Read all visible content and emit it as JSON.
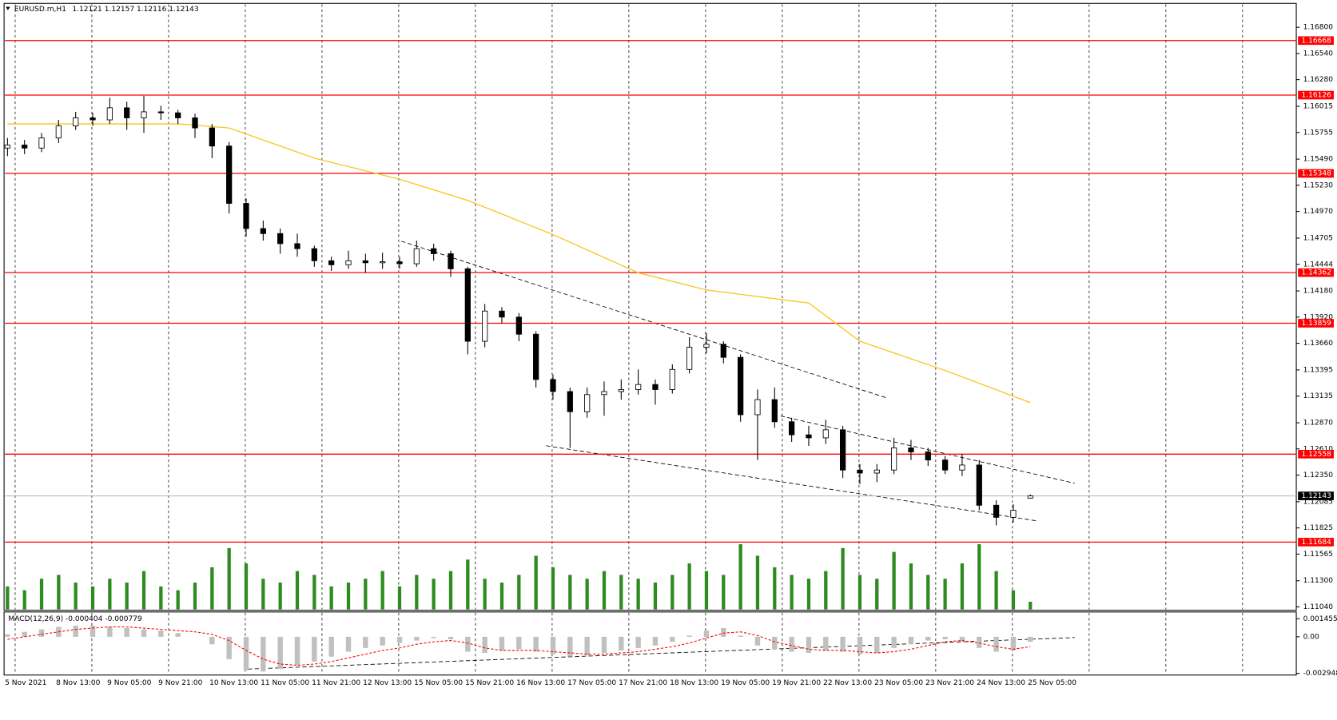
{
  "chart_data": {
    "type": "candlestick",
    "title": "EURUSD.m,H1",
    "info": "1.12121 1.12157 1.12116 1.12143",
    "ylim": [
      1.11015,
      1.17029
    ],
    "yticks": [
      {
        "value": 1.168,
        "label": "1.16800"
      },
      {
        "value": 1.1654,
        "label": "1.16540"
      },
      {
        "value": 1.1628,
        "label": "1.16280"
      },
      {
        "value": 1.16015,
        "label": "1.16015"
      },
      {
        "value": 1.15755,
        "label": "1.15755"
      },
      {
        "value": 1.1549,
        "label": "1.15490"
      },
      {
        "value": 1.1523,
        "label": "1.15230"
      },
      {
        "value": 1.1497,
        "label": "1.14970"
      },
      {
        "value": 1.14705,
        "label": "1.14705"
      },
      {
        "value": 1.14444,
        "label": "1.14444"
      },
      {
        "value": 1.1418,
        "label": "1.14180"
      },
      {
        "value": 1.1392,
        "label": "1.13920"
      },
      {
        "value": 1.1366,
        "label": "1.13660"
      },
      {
        "value": 1.13395,
        "label": "1.13395"
      },
      {
        "value": 1.13135,
        "label": "1.13135"
      },
      {
        "value": 1.1287,
        "label": "1.12870"
      },
      {
        "value": 1.1261,
        "label": "1.12610"
      },
      {
        "value": 1.1235,
        "label": "1.12350"
      },
      {
        "value": 1.12085,
        "label": "1.12085"
      },
      {
        "value": 1.11825,
        "label": "1.11825"
      },
      {
        "value": 1.11565,
        "label": "1.11565"
      },
      {
        "value": 1.113,
        "label": "1.11300"
      },
      {
        "value": 1.1104,
        "label": "1.11040"
      }
    ],
    "levels": [
      {
        "value": 1.16668,
        "label": "1.16668"
      },
      {
        "value": 1.16126,
        "label": "1.16126"
      },
      {
        "value": 1.15348,
        "label": "1.15348"
      },
      {
        "value": 1.14362,
        "label": "1.14362"
      },
      {
        "value": 1.13859,
        "label": "1.13859"
      },
      {
        "value": 1.12558,
        "label": "1.12558"
      },
      {
        "value": 1.11684,
        "label": "1.11684"
      }
    ],
    "level_color": "#ff0000",
    "current": {
      "value": 1.12143,
      "label": "1.12143"
    },
    "categories": [
      "5 Nov 2021",
      "8 Nov 13:00",
      "9 Nov 05:00",
      "9 Nov 21:00",
      "10 Nov 13:00",
      "11 Nov 05:00",
      "11 Nov 21:00",
      "12 Nov 13:00",
      "15 Nov 05:00",
      "15 Nov 21:00",
      "16 Nov 13:00",
      "17 Nov 05:00",
      "17 Nov 21:00",
      "18 Nov 13:00",
      "19 Nov 05:00",
      "19 Nov 21:00",
      "22 Nov 13:00",
      "23 Nov 05:00",
      "23 Nov 21:00",
      "24 Nov 13:00",
      "25 Nov 05:00"
    ],
    "ohlc": [
      [
        1.156,
        1.157,
        1.1552,
        1.1563
      ],
      [
        1.1563,
        1.1568,
        1.1554,
        1.156
      ],
      [
        1.156,
        1.1575,
        1.1556,
        1.157
      ],
      [
        1.157,
        1.1588,
        1.1565,
        1.1582
      ],
      [
        1.1582,
        1.1596,
        1.1578,
        1.159
      ],
      [
        1.159,
        1.1595,
        1.1582,
        1.1588
      ],
      [
        1.1588,
        1.161,
        1.1584,
        1.16
      ],
      [
        1.16,
        1.1606,
        1.1578,
        1.159
      ],
      [
        1.159,
        1.1612,
        1.1575,
        1.1596
      ],
      [
        1.1596,
        1.1602,
        1.1588,
        1.1595
      ],
      [
        1.1595,
        1.1598,
        1.1584,
        1.159
      ],
      [
        1.159,
        1.1594,
        1.157,
        1.158
      ],
      [
        1.158,
        1.1584,
        1.155,
        1.1562
      ],
      [
        1.1562,
        1.1566,
        1.1495,
        1.1505
      ],
      [
        1.1505,
        1.151,
        1.1472,
        1.148
      ],
      [
        1.148,
        1.1488,
        1.1468,
        1.1475
      ],
      [
        1.1475,
        1.148,
        1.1455,
        1.1465
      ],
      [
        1.1465,
        1.1475,
        1.1452,
        1.146
      ],
      [
        1.146,
        1.1463,
        1.1442,
        1.1448
      ],
      [
        1.1448,
        1.1452,
        1.1438,
        1.1444
      ],
      [
        1.1444,
        1.1458,
        1.144,
        1.1448
      ],
      [
        1.1448,
        1.1455,
        1.1436,
        1.1446
      ],
      [
        1.1446,
        1.1456,
        1.144,
        1.1447
      ],
      [
        1.1447,
        1.1452,
        1.144,
        1.1445
      ],
      [
        1.1445,
        1.1468,
        1.1442,
        1.146
      ],
      [
        1.146,
        1.1465,
        1.1448,
        1.1455
      ],
      [
        1.1455,
        1.1458,
        1.1432,
        1.144
      ],
      [
        1.144,
        1.1442,
        1.1355,
        1.1368
      ],
      [
        1.1368,
        1.1405,
        1.1362,
        1.1398
      ],
      [
        1.1398,
        1.1402,
        1.1386,
        1.1392
      ],
      [
        1.1392,
        1.1396,
        1.1368,
        1.1375
      ],
      [
        1.1375,
        1.1378,
        1.1322,
        1.133
      ],
      [
        1.133,
        1.1335,
        1.131,
        1.1318
      ],
      [
        1.1318,
        1.1322,
        1.1262,
        1.1298
      ],
      [
        1.1298,
        1.1322,
        1.1292,
        1.1315
      ],
      [
        1.1315,
        1.1328,
        1.1294,
        1.1318
      ],
      [
        1.1318,
        1.133,
        1.131,
        1.132
      ],
      [
        1.132,
        1.134,
        1.1315,
        1.1325
      ],
      [
        1.1325,
        1.133,
        1.1305,
        1.132
      ],
      [
        1.132,
        1.1345,
        1.1316,
        1.134
      ],
      [
        1.134,
        1.1372,
        1.1336,
        1.1362
      ],
      [
        1.1362,
        1.1376,
        1.1356,
        1.1365
      ],
      [
        1.1365,
        1.1368,
        1.1346,
        1.1352
      ],
      [
        1.1352,
        1.1355,
        1.1288,
        1.1295
      ],
      [
        1.1295,
        1.132,
        1.125,
        1.131
      ],
      [
        1.131,
        1.1322,
        1.1282,
        1.1288
      ],
      [
        1.1288,
        1.1292,
        1.1268,
        1.1275
      ],
      [
        1.1275,
        1.1284,
        1.1264,
        1.1272
      ],
      [
        1.1272,
        1.129,
        1.1266,
        1.128
      ],
      [
        1.128,
        1.1284,
        1.1232,
        1.124
      ],
      [
        1.124,
        1.1246,
        1.1226,
        1.1237
      ],
      [
        1.1237,
        1.1246,
        1.1228,
        1.124
      ],
      [
        1.124,
        1.1272,
        1.1236,
        1.1262
      ],
      [
        1.1262,
        1.127,
        1.125,
        1.1258
      ],
      [
        1.1258,
        1.1262,
        1.1244,
        1.125
      ],
      [
        1.125,
        1.1254,
        1.1236,
        1.124
      ],
      [
        1.124,
        1.1256,
        1.1234,
        1.1245
      ],
      [
        1.1245,
        1.125,
        1.12,
        1.1205
      ],
      [
        1.1205,
        1.121,
        1.1185,
        1.1193
      ],
      [
        1.1193,
        1.1206,
        1.1188,
        1.12
      ],
      [
        1.12121,
        1.12157,
        1.12116,
        1.12143
      ]
    ],
    "ma": {
      "color": "#f5c518",
      "x": [
        0,
        10,
        13,
        18,
        23,
        27,
        32,
        37,
        41,
        47,
        50,
        55,
        60
      ],
      "values": [
        1.1584,
        1.1584,
        1.158,
        1.155,
        1.1529,
        1.1508,
        1.1474,
        1.1436,
        1.1419,
        1.1406,
        1.1368,
        1.1339,
        1.1307
      ]
    },
    "volume": {
      "color": "#2e8b20",
      "values": [
        30,
        25,
        40,
        45,
        35,
        30,
        40,
        35,
        50,
        30,
        25,
        35,
        55,
        80,
        60,
        40,
        35,
        50,
        45,
        30,
        35,
        40,
        50,
        30,
        45,
        40,
        50,
        65,
        40,
        35,
        45,
        70,
        55,
        45,
        40,
        50,
        45,
        40,
        35,
        45,
        60,
        50,
        45,
        85,
        70,
        55,
        45,
        40,
        50,
        80,
        45,
        40,
        75,
        60,
        45,
        40,
        60,
        85,
        50,
        25,
        10
      ]
    },
    "macd": {
      "title": "MACD(12,26,9) -0.000404 -0.000779",
      "ylim": [
        -0.002948,
        0.001455
      ],
      "yticks": [
        {
          "value": 0.001455,
          "label": "0.001455"
        },
        {
          "value": 0,
          "label": "0.00"
        },
        {
          "value": -0.002948,
          "label": "-0.002948"
        }
      ],
      "hist_color": "#c0c0c0",
      "signal_color": "#ff0000",
      "hist": [
        0.0002,
        0.0004,
        0.0006,
        0.0008,
        0.0009,
        0.0009,
        0.0008,
        0.0007,
        0.0006,
        0.0005,
        0.0003,
        0,
        -0.0006,
        -0.0018,
        -0.0027,
        -0.0028,
        -0.0026,
        -0.0023,
        -0.002,
        -0.0016,
        -0.0012,
        -0.0009,
        -0.0007,
        -0.0005,
        -0.0003,
        -0.0001,
        -0.0002,
        -0.0012,
        -0.0013,
        -0.0011,
        -0.001,
        -0.0012,
        -0.0014,
        -0.0016,
        -0.0015,
        -0.0013,
        -0.0011,
        -0.0009,
        -0.0007,
        -0.0004,
        0.0001,
        0.0005,
        0.0007,
        0.0001,
        -0.0007,
        -0.001,
        -0.0012,
        -0.0013,
        -0.0011,
        -0.0012,
        -0.0014,
        -0.0013,
        -0.0009,
        -0.0006,
        -0.0003,
        -0.0002,
        -0.0004,
        -0.0009,
        -0.0012,
        -0.0011,
        -0.0004
      ],
      "signal": [
        -0.0002,
        0,
        0.0002,
        0.0004,
        0.0006,
        0.0007,
        0.0008,
        0.0008,
        0.0007,
        0.0006,
        0.0005,
        0.0004,
        0.0002,
        -0.0003,
        -0.0011,
        -0.0018,
        -0.0022,
        -0.0023,
        -0.0022,
        -0.002,
        -0.0017,
        -0.0014,
        -0.0011,
        -0.0009,
        -0.0006,
        -0.0004,
        -0.0003,
        -0.0005,
        -0.0009,
        -0.0011,
        -0.0011,
        -0.0011,
        -0.0012,
        -0.0013,
        -0.0014,
        -0.0014,
        -0.0013,
        -0.0012,
        -0.001,
        -0.0008,
        -0.0005,
        -0.0001,
        0.0003,
        0.0004,
        0.0001,
        -0.0004,
        -0.0007,
        -0.001,
        -0.0011,
        -0.0011,
        -0.0012,
        -0.0013,
        -0.0012,
        -0.001,
        -0.0007,
        -0.0004,
        -0.0003,
        -0.0005,
        -0.0008,
        -0.001,
        -0.0008
      ]
    }
  }
}
